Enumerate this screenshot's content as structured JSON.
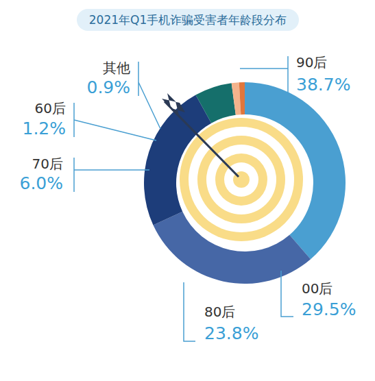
{
  "chart_data": {
    "type": "pie",
    "title": "2021年Q1手机诈骗受害者年龄段分布",
    "categories": [
      "90后",
      "00后",
      "80后",
      "70后",
      "60后",
      "其他"
    ],
    "values": [
      38.7,
      29.5,
      23.8,
      6.0,
      1.2,
      0.9
    ],
    "value_labels": [
      "38.7%",
      "29.5%",
      "23.8%",
      "6.0%",
      "1.2%",
      "0.9%"
    ],
    "colors": [
      "#4a9fd1",
      "#4667a6",
      "#1d3d7a",
      "#156f6b",
      "#f3b38c",
      "#e0763c"
    ],
    "data_labels": true
  }
}
